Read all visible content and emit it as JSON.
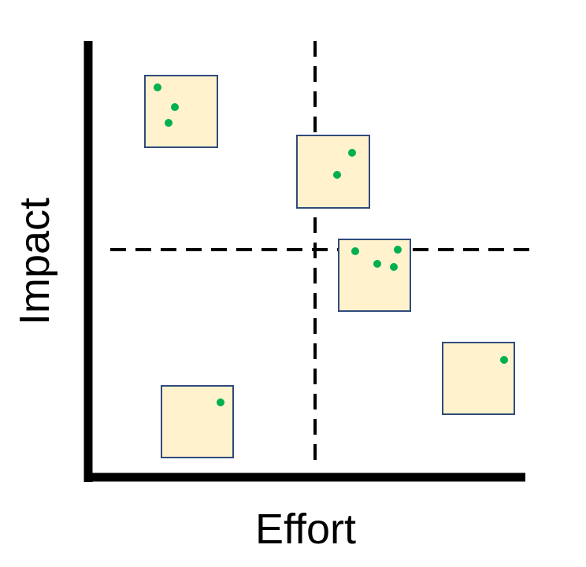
{
  "axes": {
    "x_label": "Effort",
    "y_label": "Impact"
  },
  "colors": {
    "axis": "#000000",
    "card_fill": "#fff2cc",
    "card_border": "#2f4b7c",
    "dot": "#00b050"
  },
  "cards": [
    {
      "name": "card-top-left",
      "dots": 3
    },
    {
      "name": "card-center-upper",
      "dots": 2
    },
    {
      "name": "card-center-right",
      "dots": 4
    },
    {
      "name": "card-right-lower",
      "dots": 1
    },
    {
      "name": "card-bottom-left",
      "dots": 1
    }
  ]
}
